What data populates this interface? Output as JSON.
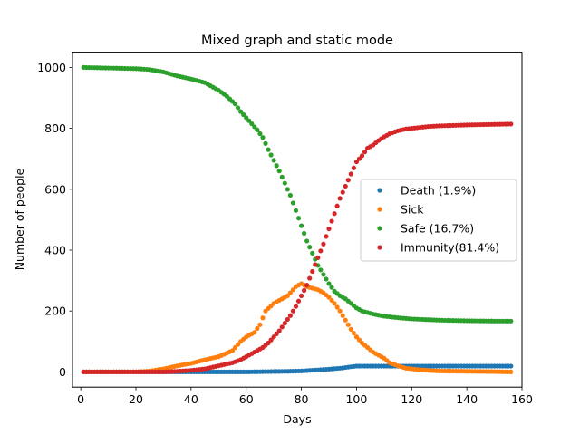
{
  "chart_data": {
    "type": "scatter",
    "title": "Mixed graph and static mode",
    "xlabel": "Days",
    "ylabel": "Number of people",
    "xlim": [
      -3,
      160
    ],
    "ylim": [
      -50,
      1050
    ],
    "xticks": [
      0,
      20,
      40,
      60,
      80,
      100,
      120,
      140,
      160
    ],
    "yticks": [
      0,
      200,
      400,
      600,
      800,
      1000
    ],
    "grid": false,
    "legend_position": "center-right",
    "series": [
      {
        "name": "Death (1.9%)",
        "color": "#1f77b4",
        "points": [
          [
            1,
            0
          ],
          [
            60,
            0
          ],
          [
            75,
            2
          ],
          [
            80,
            3
          ],
          [
            85,
            6
          ],
          [
            90,
            9
          ],
          [
            95,
            13
          ],
          [
            98,
            17
          ],
          [
            100,
            19
          ],
          [
            104,
            19
          ],
          [
            110,
            19
          ],
          [
            120,
            19
          ],
          [
            130,
            19
          ],
          [
            140,
            19
          ],
          [
            150,
            19
          ],
          [
            156,
            19
          ]
        ]
      },
      {
        "name": "Sick",
        "color": "#ff7f0e",
        "points": [
          [
            1,
            0
          ],
          [
            20,
            0
          ],
          [
            25,
            3
          ],
          [
            30,
            10
          ],
          [
            35,
            20
          ],
          [
            40,
            28
          ],
          [
            45,
            40
          ],
          [
            50,
            50
          ],
          [
            55,
            70
          ],
          [
            58,
            100
          ],
          [
            60,
            115
          ],
          [
            63,
            130
          ],
          [
            65,
            155
          ],
          [
            67,
            200
          ],
          [
            70,
            225
          ],
          [
            72,
            235
          ],
          [
            75,
            250
          ],
          [
            78,
            280
          ],
          [
            80,
            290
          ],
          [
            82,
            280
          ],
          [
            84,
            275
          ],
          [
            86,
            270
          ],
          [
            88,
            260
          ],
          [
            90,
            245
          ],
          [
            92,
            225
          ],
          [
            94,
            200
          ],
          [
            96,
            170
          ],
          [
            98,
            140
          ],
          [
            100,
            115
          ],
          [
            102,
            95
          ],
          [
            104,
            80
          ],
          [
            106,
            65
          ],
          [
            108,
            55
          ],
          [
            110,
            45
          ],
          [
            112,
            30
          ],
          [
            115,
            20
          ],
          [
            118,
            12
          ],
          [
            122,
            8
          ],
          [
            126,
            5
          ],
          [
            130,
            3
          ],
          [
            140,
            2
          ],
          [
            150,
            1
          ],
          [
            156,
            0
          ]
        ]
      },
      {
        "name": "Safe (16.7%)",
        "color": "#2ca02c",
        "points": [
          [
            1,
            1000
          ],
          [
            10,
            998
          ],
          [
            20,
            996
          ],
          [
            25,
            993
          ],
          [
            30,
            985
          ],
          [
            35,
            972
          ],
          [
            40,
            962
          ],
          [
            45,
            950
          ],
          [
            48,
            935
          ],
          [
            50,
            925
          ],
          [
            53,
            905
          ],
          [
            56,
            880
          ],
          [
            58,
            855
          ],
          [
            60,
            835
          ],
          [
            62,
            815
          ],
          [
            64,
            795
          ],
          [
            66,
            770
          ],
          [
            68,
            730
          ],
          [
            70,
            695
          ],
          [
            72,
            660
          ],
          [
            74,
            620
          ],
          [
            76,
            580
          ],
          [
            78,
            530
          ],
          [
            80,
            480
          ],
          [
            82,
            430
          ],
          [
            84,
            390
          ],
          [
            86,
            350
          ],
          [
            88,
            320
          ],
          [
            90,
            290
          ],
          [
            92,
            265
          ],
          [
            94,
            250
          ],
          [
            96,
            240
          ],
          [
            98,
            225
          ],
          [
            100,
            210
          ],
          [
            102,
            200
          ],
          [
            104,
            195
          ],
          [
            106,
            190
          ],
          [
            110,
            183
          ],
          [
            115,
            178
          ],
          [
            120,
            174
          ],
          [
            130,
            170
          ],
          [
            140,
            168
          ],
          [
            150,
            167
          ],
          [
            156,
            167
          ]
        ]
      },
      {
        "name": "Immunity(81.4%)",
        "color": "#d62728",
        "points": [
          [
            1,
            0
          ],
          [
            30,
            0
          ],
          [
            35,
            2
          ],
          [
            40,
            5
          ],
          [
            45,
            10
          ],
          [
            50,
            20
          ],
          [
            55,
            30
          ],
          [
            58,
            40
          ],
          [
            60,
            50
          ],
          [
            62,
            60
          ],
          [
            64,
            70
          ],
          [
            66,
            80
          ],
          [
            68,
            95
          ],
          [
            70,
            115
          ],
          [
            72,
            135
          ],
          [
            74,
            160
          ],
          [
            76,
            185
          ],
          [
            78,
            215
          ],
          [
            80,
            250
          ],
          [
            82,
            285
          ],
          [
            84,
            330
          ],
          [
            86,
            375
          ],
          [
            88,
            420
          ],
          [
            90,
            470
          ],
          [
            92,
            520
          ],
          [
            94,
            570
          ],
          [
            96,
            610
          ],
          [
            98,
            650
          ],
          [
            100,
            690
          ],
          [
            102,
            710
          ],
          [
            104,
            735
          ],
          [
            106,
            745
          ],
          [
            108,
            760
          ],
          [
            110,
            772
          ],
          [
            112,
            782
          ],
          [
            115,
            792
          ],
          [
            118,
            798
          ],
          [
            122,
            802
          ],
          [
            126,
            806
          ],
          [
            130,
            808
          ],
          [
            140,
            811
          ],
          [
            150,
            813
          ],
          [
            156,
            814
          ]
        ]
      }
    ]
  }
}
